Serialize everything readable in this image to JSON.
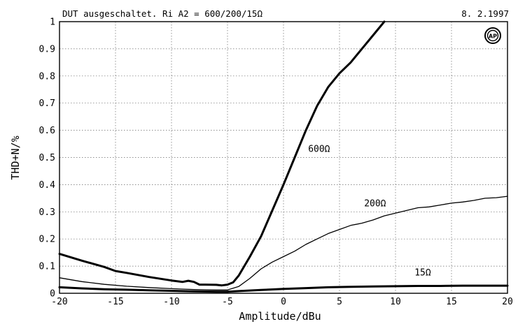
{
  "header": {
    "title": "DUT ausgeschaltet. Ri A2 = 600/200/15Ω",
    "date": "8. 2.1997",
    "logo_text": "AP"
  },
  "chart_data": {
    "type": "line",
    "title": "DUT ausgeschaltet. Ri A2 = 600/200/15Ω",
    "xlabel": "Amplitude/dBu",
    "ylabel": "THD+N/%",
    "xlim": [
      -20,
      20
    ],
    "ylim": [
      0,
      1
    ],
    "grid": true,
    "x_ticks": [
      -20,
      -15,
      -10,
      -5,
      0,
      5,
      10,
      15,
      20
    ],
    "x_tick_labels": [
      "-20",
      "-15",
      "-10",
      "-5",
      "0",
      "5",
      "10",
      "15",
      "20"
    ],
    "y_ticks": [
      0,
      0.1,
      0.2,
      0.3,
      0.4,
      0.5,
      0.6,
      0.7,
      0.8,
      0.9,
      1
    ],
    "y_tick_labels": [
      "0",
      "0.1",
      "0.2",
      "0.3",
      "0.4",
      "0.5",
      "0.6",
      "0.7",
      "0.8",
      "0.9",
      "1"
    ],
    "series": [
      {
        "name": "600Ω",
        "color": "#000000",
        "weight": "heavy",
        "x": [
          -20,
          -18,
          -16,
          -15,
          -14,
          -12,
          -10,
          -9,
          -8.5,
          -8,
          -7.5,
          -7,
          -6,
          -5.5,
          -5,
          -4.5,
          -4,
          -3,
          -2,
          -1,
          0,
          1,
          2,
          3,
          4,
          5,
          6,
          7,
          8,
          9
        ],
        "y": [
          0.145,
          0.12,
          0.097,
          0.082,
          0.075,
          0.06,
          0.047,
          0.042,
          0.046,
          0.042,
          0.032,
          0.032,
          0.031,
          0.029,
          0.032,
          0.04,
          0.065,
          0.135,
          0.21,
          0.305,
          0.4,
          0.5,
          0.6,
          0.69,
          0.76,
          0.81,
          0.85,
          0.9,
          0.95,
          1.0
        ]
      },
      {
        "name": "200Ω",
        "color": "#000000",
        "weight": "thin",
        "x": [
          -20,
          -18,
          -16,
          -14,
          -12,
          -10,
          -8,
          -6,
          -5,
          -4,
          -3,
          -2,
          -1,
          0,
          1,
          2,
          3,
          4,
          5,
          6,
          7,
          8,
          9,
          10,
          11,
          12,
          13,
          14,
          15,
          16,
          17,
          18,
          19,
          20
        ],
        "y": [
          0.057,
          0.043,
          0.033,
          0.026,
          0.021,
          0.017,
          0.014,
          0.012,
          0.012,
          0.025,
          0.055,
          0.09,
          0.115,
          0.135,
          0.155,
          0.18,
          0.2,
          0.22,
          0.235,
          0.25,
          0.258,
          0.27,
          0.285,
          0.295,
          0.305,
          0.315,
          0.318,
          0.325,
          0.332,
          0.336,
          0.342,
          0.35,
          0.352,
          0.357
        ]
      },
      {
        "name": "15Ω",
        "color": "#000000",
        "weight": "heavy",
        "x": [
          -20,
          -18,
          -16,
          -14,
          -12,
          -10,
          -8,
          -6,
          -5,
          -4,
          -2,
          0,
          2,
          4,
          6,
          8,
          10,
          12,
          14,
          16,
          18,
          20
        ],
        "y": [
          0.022,
          0.018,
          0.015,
          0.013,
          0.011,
          0.009,
          0.007,
          0.006,
          0.006,
          0.008,
          0.012,
          0.016,
          0.019,
          0.022,
          0.024,
          0.025,
          0.026,
          0.027,
          0.027,
          0.028,
          0.028,
          0.028
        ]
      }
    ],
    "annotations": [
      {
        "text": "600Ω",
        "x": 2.2,
        "y": 0.52
      },
      {
        "text": "200Ω",
        "x": 7.2,
        "y": 0.32
      },
      {
        "text": "15Ω",
        "x": 11.7,
        "y": 0.065
      }
    ]
  }
}
